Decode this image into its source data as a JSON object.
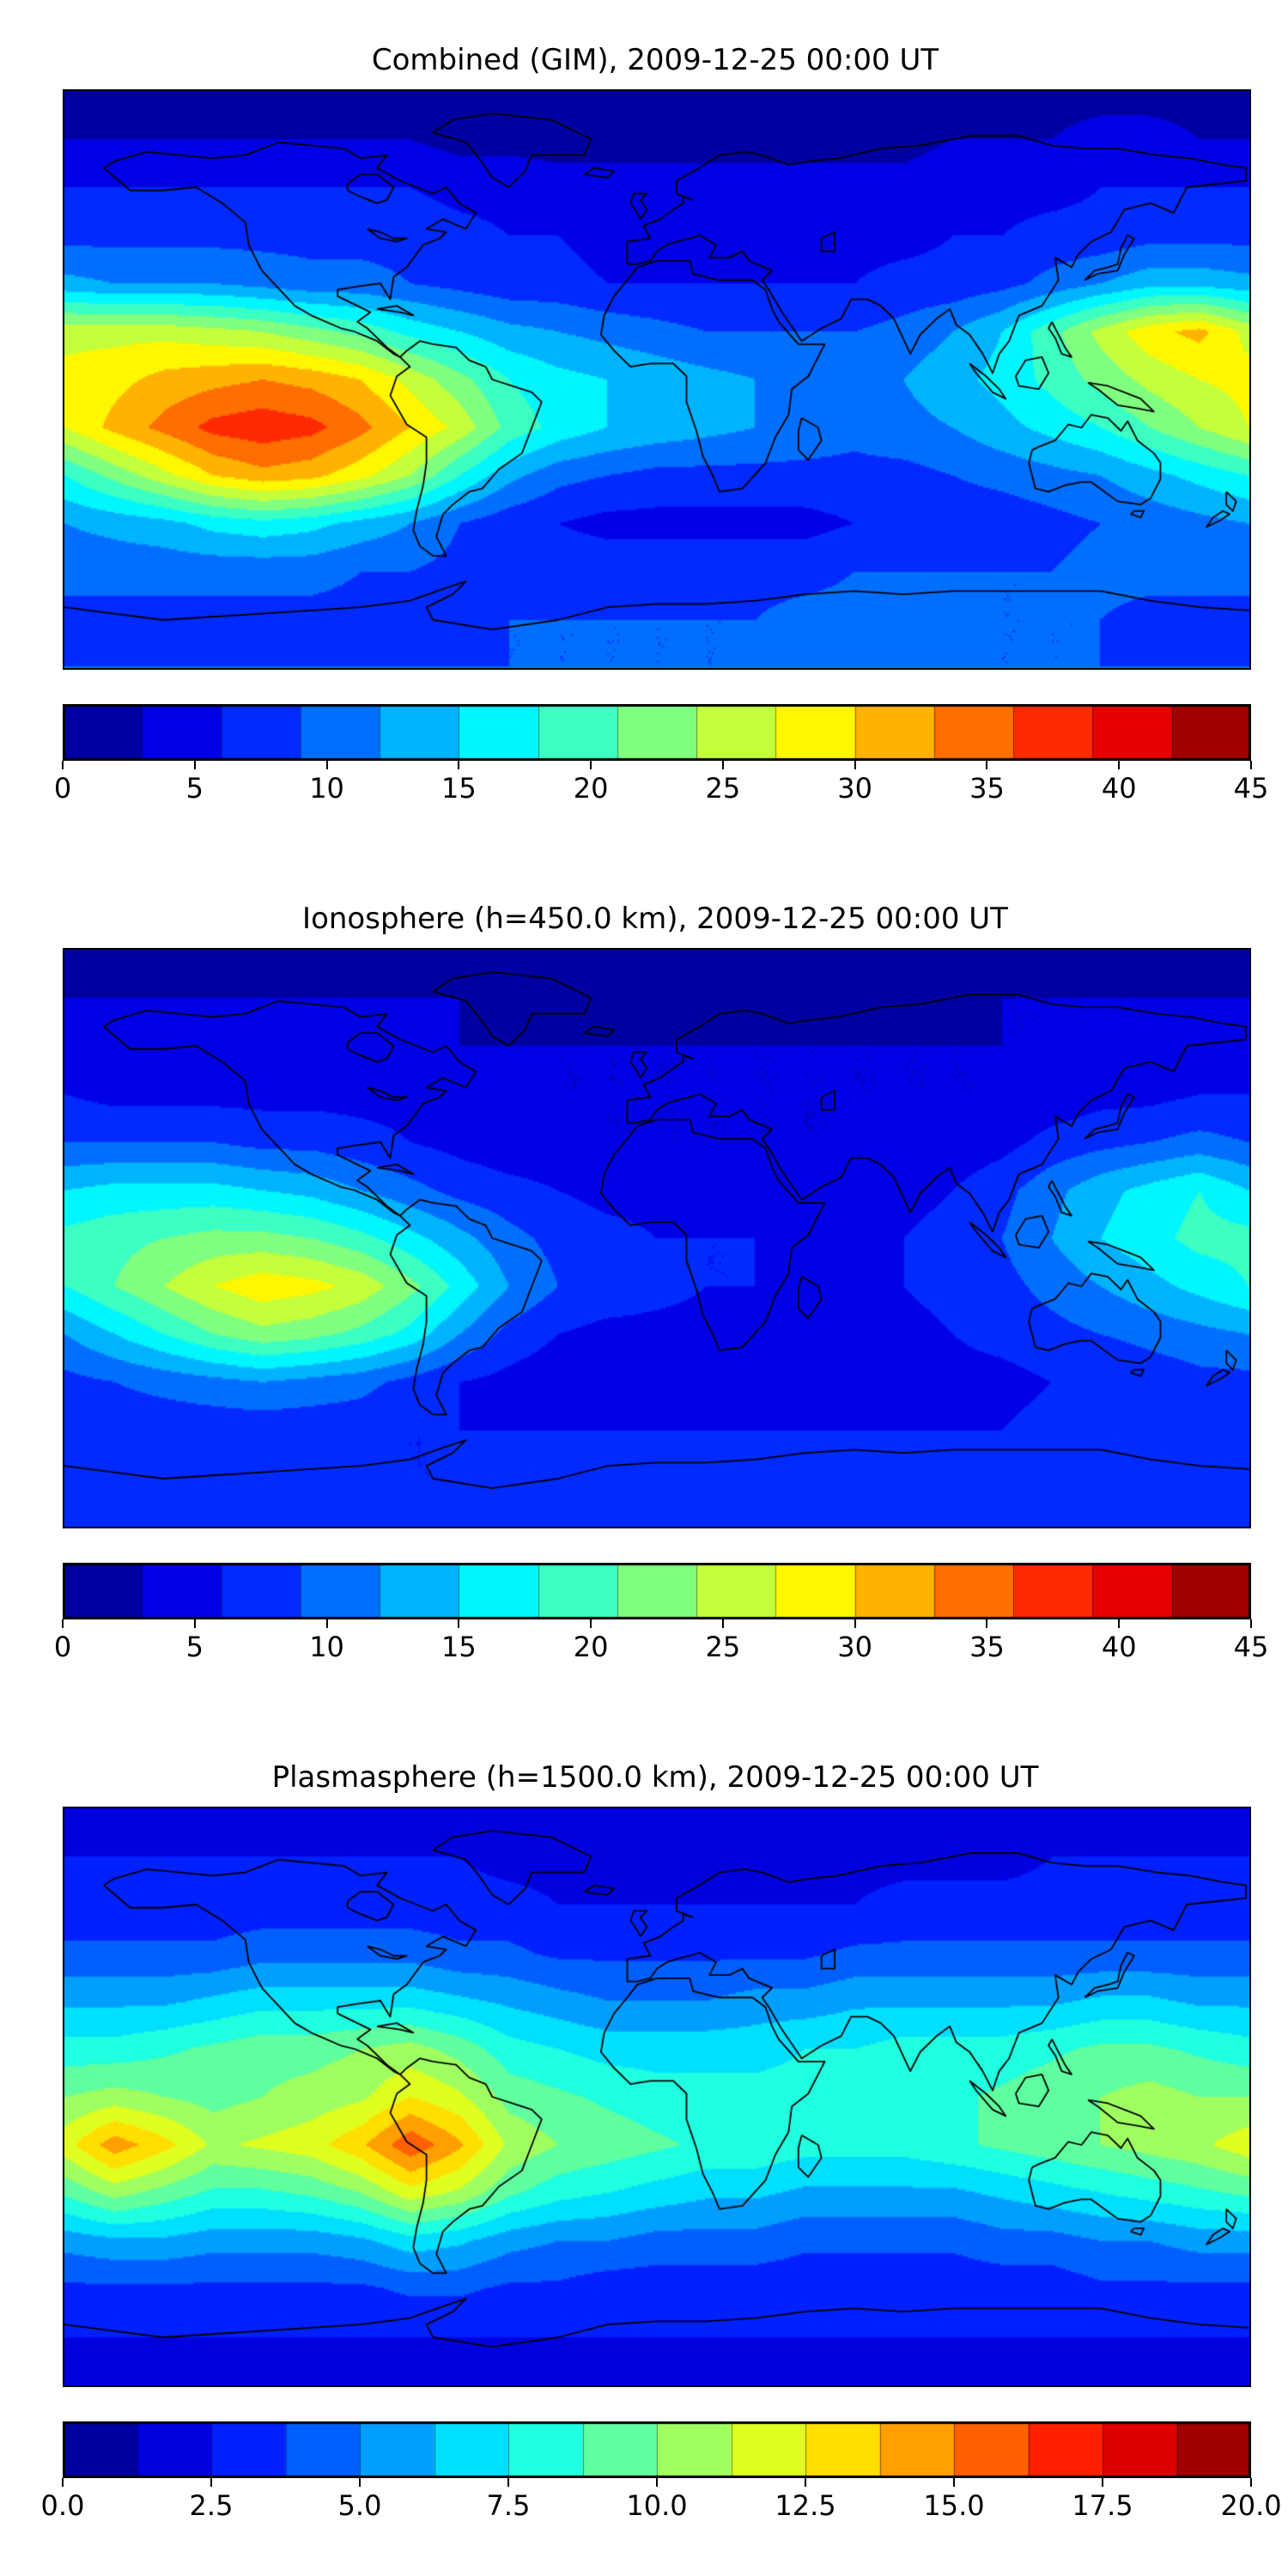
{
  "page": {
    "background": "#ffffff"
  },
  "chart_data": [
    {
      "type": "heatmap",
      "title": "Combined (GIM), 2009-12-25 00:00 UT",
      "colormap": "jet",
      "projection": "equirectangular",
      "vmin": 0,
      "vmax": 45,
      "contour_step": 3,
      "colorbar_ticks": [
        "0",
        "5",
        "10",
        "15",
        "20",
        "25",
        "30",
        "35",
        "40",
        "45"
      ],
      "lons": [
        -180,
        -165,
        -150,
        -135,
        -120,
        -105,
        -90,
        -75,
        -60,
        -45,
        -30,
        -15,
        0,
        15,
        30,
        45,
        60,
        75,
        90,
        105,
        120,
        135,
        150,
        165,
        180
      ],
      "lats": [
        90,
        75,
        60,
        45,
        30,
        15,
        0,
        -15,
        -30,
        -45,
        -60,
        -75,
        -90
      ],
      "values": [
        [
          2,
          2,
          2,
          2,
          2,
          2,
          2,
          2,
          2,
          2,
          2,
          2,
          2,
          2,
          2,
          2,
          2,
          2,
          2,
          2,
          2,
          2,
          2,
          2,
          2
        ],
        [
          3,
          3,
          3,
          3,
          3,
          3,
          3,
          3,
          2,
          2,
          2,
          2,
          2,
          2,
          2,
          2,
          2,
          2,
          3,
          3,
          3,
          4,
          4,
          3,
          3
        ],
        [
          6,
          6,
          6,
          6,
          6,
          6,
          6,
          6,
          5,
          5,
          4,
          4,
          4,
          4,
          4,
          4,
          4,
          4,
          5,
          5,
          5,
          6,
          6,
          6,
          6
        ],
        [
          8,
          8,
          8,
          8,
          8,
          8,
          8,
          8,
          7,
          6,
          6,
          5,
          5,
          5,
          5,
          5,
          5,
          5,
          6,
          6,
          7,
          7,
          8,
          8,
          8
        ],
        [
          13,
          12,
          12,
          12,
          11,
          10,
          10,
          9,
          8,
          7,
          7,
          6,
          6,
          6,
          6,
          6,
          6,
          7,
          7,
          8,
          10,
          12,
          14,
          14,
          13
        ],
        [
          26,
          26,
          26,
          25,
          24,
          22,
          20,
          17,
          15,
          13,
          12,
          11,
          10,
          9,
          9,
          9,
          9,
          10,
          12,
          15,
          20,
          25,
          29,
          31,
          26
        ],
        [
          28,
          29,
          31,
          32,
          33,
          32,
          30,
          26,
          22,
          18,
          16,
          15,
          14,
          13,
          12,
          11,
          11,
          12,
          14,
          16,
          19,
          22,
          25,
          27,
          28
        ],
        [
          27,
          31,
          34,
          37,
          38,
          37,
          34,
          30,
          26,
          20,
          17,
          15,
          14,
          13,
          12,
          11,
          10,
          11,
          12,
          14,
          16,
          18,
          21,
          24,
          27
        ],
        [
          18,
          22,
          26,
          30,
          32,
          31,
          28,
          24,
          18,
          13,
          10,
          9,
          8,
          8,
          8,
          8,
          8,
          8,
          9,
          10,
          11,
          12,
          14,
          16,
          18
        ],
        [
          12,
          13,
          14,
          16,
          17,
          16,
          14,
          12,
          9,
          7,
          6,
          5,
          5,
          5,
          5,
          5,
          6,
          6,
          7,
          7,
          8,
          9,
          10,
          11,
          12
        ],
        [
          10,
          10,
          10,
          10,
          10,
          10,
          9,
          9,
          8,
          8,
          8,
          8,
          8,
          8,
          8,
          8,
          9,
          9,
          9,
          9,
          9,
          10,
          10,
          10,
          10
        ],
        [
          8,
          8,
          8,
          8,
          8,
          8,
          8,
          8,
          8,
          9,
          9,
          9,
          9,
          9,
          9,
          10,
          10,
          10,
          10,
          9,
          9,
          9,
          8,
          8,
          8
        ],
        [
          9,
          9,
          9,
          9,
          9,
          9,
          9,
          9,
          9,
          9,
          9,
          9,
          9,
          9,
          9,
          9,
          9,
          9,
          9,
          9,
          9,
          9,
          9,
          9,
          9
        ]
      ]
    },
    {
      "type": "heatmap",
      "title": "Ionosphere  (h=450.0 km), 2009-12-25 00:00 UT",
      "colormap": "jet",
      "projection": "equirectangular",
      "vmin": 0,
      "vmax": 45,
      "contour_step": 3,
      "colorbar_ticks": [
        "0",
        "5",
        "10",
        "15",
        "20",
        "25",
        "30",
        "35",
        "40",
        "45"
      ],
      "lons": [
        -180,
        -165,
        -150,
        -135,
        -120,
        -105,
        -90,
        -75,
        -60,
        -45,
        -30,
        -15,
        0,
        15,
        30,
        45,
        60,
        75,
        90,
        105,
        120,
        135,
        150,
        165,
        180
      ],
      "lats": [
        90,
        75,
        60,
        45,
        30,
        15,
        0,
        -15,
        -30,
        -45,
        -60,
        -75,
        -90
      ],
      "values": [
        [
          2,
          2,
          2,
          2,
          2,
          2,
          2,
          2,
          2,
          2,
          2,
          2,
          2,
          2,
          2,
          2,
          2,
          2,
          2,
          2,
          2,
          2,
          2,
          2,
          2
        ],
        [
          3,
          3,
          3,
          3,
          3,
          3,
          3,
          3,
          3,
          2,
          2,
          2,
          2,
          2,
          2,
          2,
          2,
          2,
          2,
          3,
          3,
          3,
          3,
          3,
          3
        ],
        [
          4,
          4,
          4,
          4,
          4,
          4,
          4,
          4,
          3,
          3,
          3,
          3,
          3,
          3,
          3,
          3,
          3,
          3,
          3,
          3,
          3,
          4,
          4,
          4,
          4
        ],
        [
          6,
          5,
          5,
          5,
          5,
          5,
          5,
          5,
          4,
          4,
          3,
          3,
          3,
          3,
          3,
          3,
          3,
          3,
          3,
          3,
          4,
          5,
          5,
          6,
          6
        ],
        [
          9,
          9,
          9,
          9,
          8,
          8,
          7,
          6,
          5,
          4,
          4,
          3,
          3,
          3,
          3,
          3,
          3,
          4,
          4,
          5,
          7,
          8,
          9,
          10,
          9
        ],
        [
          15,
          16,
          16,
          16,
          15,
          14,
          12,
          10,
          8,
          7,
          6,
          5,
          5,
          5,
          4,
          4,
          4,
          5,
          6,
          8,
          11,
          14,
          16,
          18,
          15
        ],
        [
          19,
          20,
          21,
          22,
          22,
          21,
          19,
          16,
          13,
          10,
          8,
          7,
          6,
          6,
          6,
          5,
          5,
          6,
          7,
          9,
          12,
          15,
          17,
          19,
          19
        ],
        [
          18,
          21,
          24,
          27,
          29,
          28,
          26,
          22,
          17,
          12,
          9,
          8,
          7,
          6,
          6,
          5,
          5,
          6,
          7,
          8,
          10,
          12,
          14,
          16,
          18
        ],
        [
          12,
          15,
          18,
          21,
          23,
          22,
          20,
          17,
          12,
          8,
          6,
          5,
          5,
          5,
          5,
          5,
          5,
          5,
          6,
          7,
          8,
          9,
          10,
          11,
          12
        ],
        [
          8,
          9,
          10,
          11,
          12,
          11,
          10,
          8,
          6,
          5,
          4,
          4,
          4,
          4,
          4,
          4,
          4,
          5,
          5,
          5,
          6,
          6,
          7,
          8,
          8
        ],
        [
          7,
          7,
          7,
          7,
          7,
          7,
          7,
          6,
          6,
          6,
          6,
          6,
          6,
          6,
          6,
          6,
          6,
          6,
          6,
          6,
          7,
          7,
          7,
          7,
          7
        ],
        [
          6,
          6,
          6,
          6,
          6,
          6,
          6,
          6,
          6,
          7,
          7,
          7,
          7,
          7,
          7,
          8,
          8,
          8,
          7,
          7,
          7,
          6,
          6,
          6,
          6
        ],
        [
          7,
          7,
          7,
          7,
          7,
          7,
          7,
          7,
          7,
          7,
          7,
          7,
          7,
          7,
          7,
          7,
          7,
          7,
          7,
          7,
          7,
          7,
          7,
          7,
          7
        ]
      ]
    },
    {
      "type": "heatmap",
      "title": "Plasmasphere (h=1500.0 km), 2009-12-25 00:00 UT",
      "colormap": "jet",
      "projection": "equirectangular",
      "vmin": 0,
      "vmax": 20,
      "contour_step": 1.25,
      "colorbar_ticks": [
        "0.0",
        "2.5",
        "5.0",
        "7.5",
        "10.0",
        "12.5",
        "15.0",
        "17.5",
        "20.0"
      ],
      "lons": [
        -180,
        -165,
        -150,
        -135,
        -120,
        -105,
        -90,
        -75,
        -60,
        -45,
        -30,
        -15,
        0,
        15,
        30,
        45,
        60,
        75,
        90,
        105,
        120,
        135,
        150,
        165,
        180
      ],
      "lats": [
        90,
        75,
        60,
        45,
        30,
        15,
        0,
        -15,
        -30,
        -45,
        -60,
        -75,
        -90
      ],
      "values": [
        [
          2,
          2,
          2,
          2,
          2,
          2,
          2,
          2,
          2,
          2,
          2,
          2,
          2,
          2,
          2,
          2,
          2,
          2,
          2,
          2,
          2,
          2,
          2,
          2,
          2
        ],
        [
          2.5,
          2.5,
          2.5,
          2.5,
          2.5,
          2.5,
          2.5,
          2.5,
          2.5,
          2,
          2,
          2,
          2,
          2,
          2,
          2,
          2,
          2,
          2,
          2,
          2.5,
          2.5,
          2.5,
          2.5,
          2.5
        ],
        [
          3,
          3,
          3,
          3,
          3,
          3,
          3,
          3,
          3,
          3,
          2.5,
          2.5,
          2.5,
          2.5,
          2.5,
          2.5,
          2.5,
          3,
          3,
          3,
          3,
          3,
          3,
          3,
          3
        ],
        [
          4,
          4,
          4,
          4,
          4.5,
          4.5,
          4.5,
          4.5,
          4,
          4,
          3.5,
          3.5,
          3.5,
          3.5,
          3.5,
          3.5,
          4,
          4,
          4,
          4,
          4,
          4,
          4,
          4,
          4
        ],
        [
          6,
          6,
          6,
          6.5,
          7,
          7,
          7,
          7,
          6.5,
          6,
          5.5,
          5,
          5,
          5,
          5.5,
          5.5,
          6,
          6,
          6,
          6,
          6,
          6.5,
          6.5,
          6,
          6
        ],
        [
          8,
          8,
          8.5,
          9,
          9.5,
          9.5,
          10,
          10.5,
          9.5,
          8,
          7.5,
          7,
          7,
          7,
          7,
          7.5,
          7.5,
          8,
          8,
          8,
          8.5,
          9,
          9,
          8.5,
          8
        ],
        [
          10,
          10.5,
          10,
          9.5,
          10,
          10.5,
          11,
          12.5,
          11.5,
          9.5,
          9,
          8.5,
          8,
          8,
          8,
          8,
          8,
          8.5,
          8.5,
          9,
          9.5,
          10,
          10.5,
          10,
          10
        ],
        [
          12,
          14.5,
          13,
          11,
          11.5,
          12,
          13.5,
          16,
          14,
          11,
          10,
          9.5,
          9,
          8.5,
          8.5,
          8,
          8,
          8,
          8.5,
          9,
          9.5,
          10,
          10.5,
          11,
          12
        ],
        [
          9,
          10.5,
          9.5,
          8.5,
          8.5,
          9,
          10,
          12,
          11,
          9,
          8,
          7.5,
          7,
          6.5,
          6.5,
          6,
          6,
          6,
          6,
          6.5,
          7,
          7.5,
          8,
          8.5,
          9
        ],
        [
          5.5,
          6,
          6,
          5.5,
          5.5,
          5.5,
          6,
          7,
          6.5,
          5.5,
          5,
          5,
          4.5,
          4.5,
          4.5,
          4,
          4,
          4,
          4,
          4.5,
          4.5,
          5,
          5,
          5.5,
          5.5
        ],
        [
          3.5,
          3.5,
          3.5,
          3.5,
          3.5,
          3.5,
          3.5,
          4,
          4,
          3.5,
          3.5,
          3,
          3,
          3,
          3,
          3,
          3,
          3,
          3,
          3,
          3,
          3.5,
          3.5,
          3.5,
          3.5
        ],
        [
          2.5,
          2.5,
          2.5,
          2.5,
          2.5,
          2.5,
          2.5,
          2.5,
          2.5,
          2.5,
          2.5,
          2.5,
          2.5,
          2.5,
          2.5,
          2.5,
          2.5,
          2.5,
          2.5,
          2.5,
          2.5,
          2.5,
          2.5,
          2.5,
          2.5
        ],
        [
          2,
          2,
          2,
          2,
          2,
          2,
          2,
          2,
          2,
          2,
          2,
          2,
          2,
          2,
          2,
          2,
          2,
          2,
          2,
          2,
          2,
          2,
          2,
          2,
          2
        ]
      ]
    }
  ]
}
